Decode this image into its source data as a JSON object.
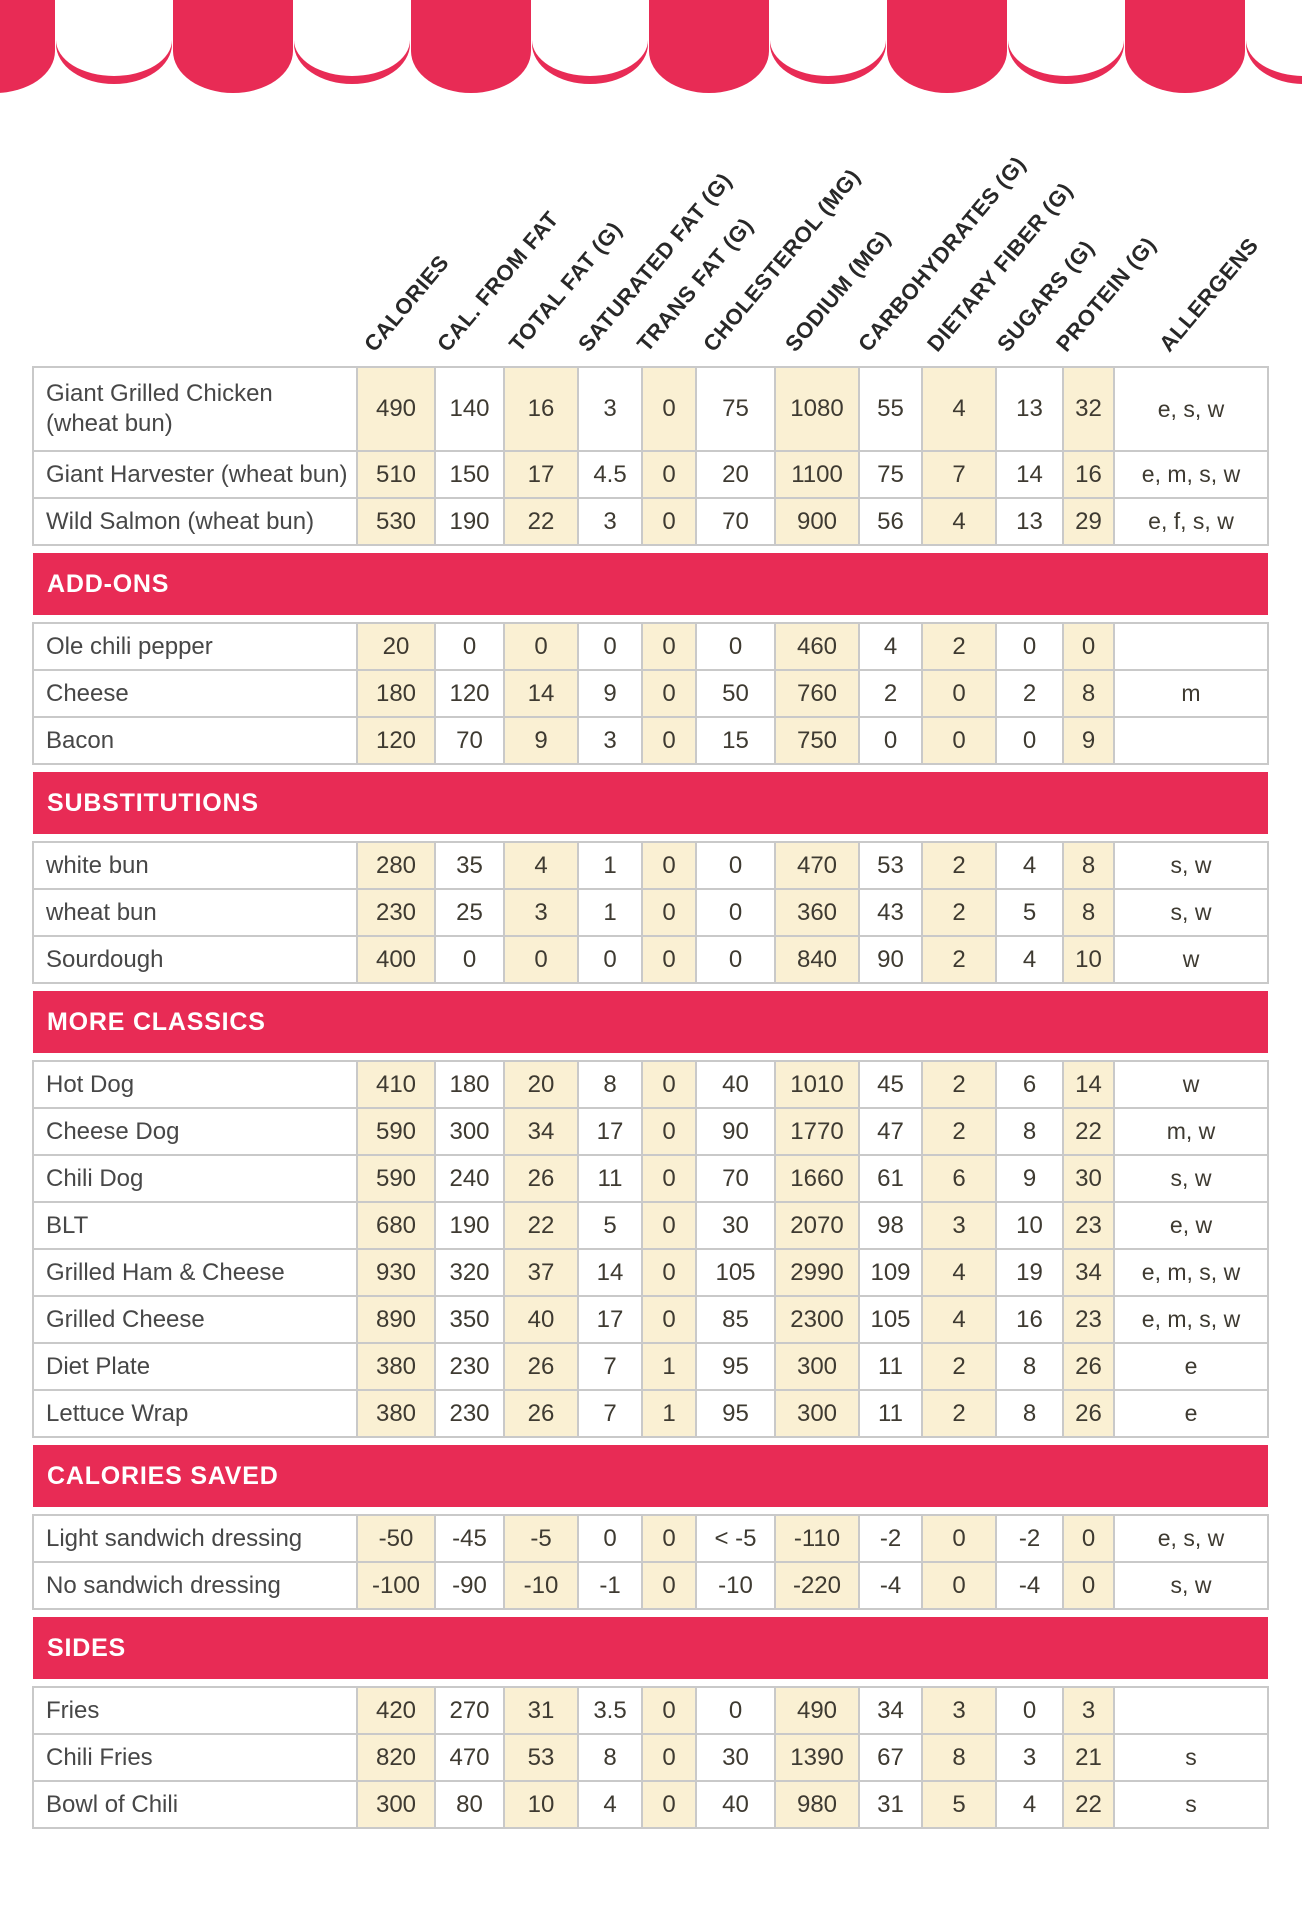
{
  "page": {
    "accent_red": "#e82b55",
    "cream": "#faf0d3",
    "border_gray": "#c9c9c9",
    "background": "#ffffff"
  },
  "decorations": {
    "awning": "scalloped-awning"
  },
  "table": {
    "columns": [
      "CALORIES",
      "CAL. FROM FAT",
      "TOTAL FAT (G)",
      "SATURATED FAT (G)",
      "TRANS FAT (G)",
      "CHOLESTEROL (MG)",
      "SODIUM (MG)",
      "CARBOHYDRATES (G)",
      "DIETARY FIBER (G)",
      "SUGARS (G)",
      "PROTEIN (G)",
      "ALLERGENS"
    ],
    "groups": [
      {
        "header": null,
        "rows": [
          {
            "name": "Giant Grilled Chicken (wheat bun)",
            "values": [
              "490",
              "140",
              "16",
              "3",
              "0",
              "75",
              "1080",
              "55",
              "4",
              "13",
              "32"
            ],
            "allergens": "e, s, w"
          },
          {
            "name": "Giant Harvester (wheat bun)",
            "values": [
              "510",
              "150",
              "17",
              "4.5",
              "0",
              "20",
              "1100",
              "75",
              "7",
              "14",
              "16"
            ],
            "allergens": "e, m, s, w"
          },
          {
            "name": "Wild Salmon (wheat bun)",
            "values": [
              "530",
              "190",
              "22",
              "3",
              "0",
              "70",
              "900",
              "56",
              "4",
              "13",
              "29"
            ],
            "allergens": "e, f, s, w"
          }
        ]
      },
      {
        "header": "ADD-ONS",
        "rows": [
          {
            "name": "Ole chili pepper",
            "values": [
              "20",
              "0",
              "0",
              "0",
              "0",
              "0",
              "460",
              "4",
              "2",
              "0",
              "0"
            ],
            "allergens": ""
          },
          {
            "name": "Cheese",
            "values": [
              "180",
              "120",
              "14",
              "9",
              "0",
              "50",
              "760",
              "2",
              "0",
              "2",
              "8"
            ],
            "allergens": "m"
          },
          {
            "name": "Bacon",
            "values": [
              "120",
              "70",
              "9",
              "3",
              "0",
              "15",
              "750",
              "0",
              "0",
              "0",
              "9"
            ],
            "allergens": ""
          }
        ]
      },
      {
        "header": "SUBSTITUTIONS",
        "rows": [
          {
            "name": "white bun",
            "values": [
              "280",
              "35",
              "4",
              "1",
              "0",
              "0",
              "470",
              "53",
              "2",
              "4",
              "8"
            ],
            "allergens": "s, w"
          },
          {
            "name": "wheat bun",
            "values": [
              "230",
              "25",
              "3",
              "1",
              "0",
              "0",
              "360",
              "43",
              "2",
              "5",
              "8"
            ],
            "allergens": "s, w"
          },
          {
            "name": "Sourdough",
            "values": [
              "400",
              "0",
              "0",
              "0",
              "0",
              "0",
              "840",
              "90",
              "2",
              "4",
              "10"
            ],
            "allergens": "w"
          }
        ]
      },
      {
        "header": "MORE CLASSICS",
        "rows": [
          {
            "name": "Hot Dog",
            "values": [
              "410",
              "180",
              "20",
              "8",
              "0",
              "40",
              "1010",
              "45",
              "2",
              "6",
              "14"
            ],
            "allergens": "w"
          },
          {
            "name": "Cheese Dog",
            "values": [
              "590",
              "300",
              "34",
              "17",
              "0",
              "90",
              "1770",
              "47",
              "2",
              "8",
              "22"
            ],
            "allergens": "m, w"
          },
          {
            "name": "Chili Dog",
            "values": [
              "590",
              "240",
              "26",
              "11",
              "0",
              "70",
              "1660",
              "61",
              "6",
              "9",
              "30"
            ],
            "allergens": "s, w"
          },
          {
            "name": "BLT",
            "values": [
              "680",
              "190",
              "22",
              "5",
              "0",
              "30",
              "2070",
              "98",
              "3",
              "10",
              "23"
            ],
            "allergens": "e, w"
          },
          {
            "name": "Grilled Ham & Cheese",
            "values": [
              "930",
              "320",
              "37",
              "14",
              "0",
              "105",
              "2990",
              "109",
              "4",
              "19",
              "34"
            ],
            "allergens": "e, m, s, w"
          },
          {
            "name": "Grilled Cheese",
            "values": [
              "890",
              "350",
              "40",
              "17",
              "0",
              "85",
              "2300",
              "105",
              "4",
              "16",
              "23"
            ],
            "allergens": "e, m, s, w"
          },
          {
            "name": "Diet Plate",
            "values": [
              "380",
              "230",
              "26",
              "7",
              "1",
              "95",
              "300",
              "11",
              "2",
              "8",
              "26"
            ],
            "allergens": "e"
          },
          {
            "name": "Lettuce Wrap",
            "values": [
              "380",
              "230",
              "26",
              "7",
              "1",
              "95",
              "300",
              "11",
              "2",
              "8",
              "26"
            ],
            "allergens": "e"
          }
        ]
      },
      {
        "header": "CALORIES SAVED",
        "rows": [
          {
            "name": "Light sandwich dressing",
            "values": [
              "-50",
              "-45",
              "-5",
              "0",
              "0",
              "< -5",
              "-110",
              "-2",
              "0",
              "-2",
              "0"
            ],
            "allergens": "e, s, w"
          },
          {
            "name": "No sandwich dressing",
            "values": [
              "-100",
              "-90",
              "-10",
              "-1",
              "0",
              "-10",
              "-220",
              "-4",
              "0",
              "-4",
              "0"
            ],
            "allergens": "s, w"
          }
        ]
      },
      {
        "header": "SIDES",
        "rows": [
          {
            "name": "Fries",
            "values": [
              "420",
              "270",
              "31",
              "3.5",
              "0",
              "0",
              "490",
              "34",
              "3",
              "0",
              "3"
            ],
            "allergens": ""
          },
          {
            "name": "Chili Fries",
            "values": [
              "820",
              "470",
              "53",
              "8",
              "0",
              "30",
              "1390",
              "67",
              "8",
              "3",
              "21"
            ],
            "allergens": "s"
          },
          {
            "name": "Bowl of Chili",
            "values": [
              "300",
              "80",
              "10",
              "4",
              "0",
              "40",
              "980",
              "31",
              "5",
              "4",
              "22"
            ],
            "allergens": "s"
          }
        ]
      }
    ]
  }
}
